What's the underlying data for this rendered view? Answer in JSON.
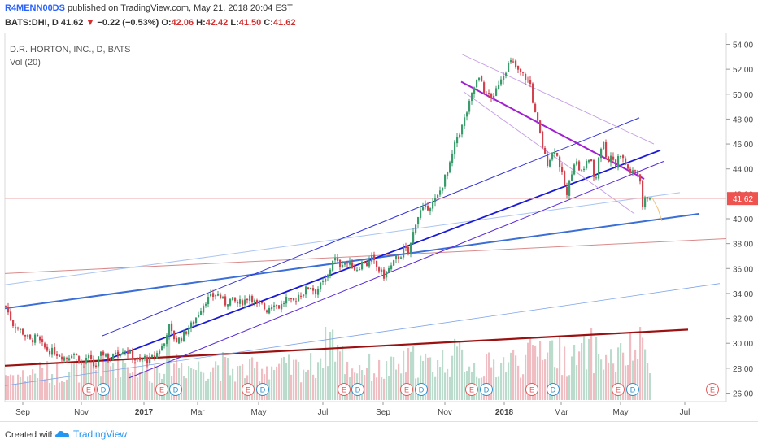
{
  "header": {
    "author": "R4MENN00DS",
    "published_text": "published on TradingView.com, May 21, 2018 20:04 EST",
    "symbol_line": "BATS:DHI, D",
    "last": "41.62",
    "down_arrow": "▼",
    "change": "−0.22 (−0.53%)",
    "o_label": "O:",
    "o_val": "42.06",
    "h_label": "H:",
    "h_val": "42.42",
    "l_label": "L:",
    "l_val": "41.50",
    "c_label": "C:",
    "c_val": "41.62"
  },
  "legend": {
    "symbol": "D.R. HORTON, INC., D, BATS",
    "volume": "Vol (20)"
  },
  "footer": {
    "created_with": "Created with",
    "brand": "TradingView"
  },
  "colors": {
    "up": "#3c9b6c",
    "down": "#d2424f",
    "last_price_badge": "#ef5350"
  },
  "chart_data": {
    "type": "candlestick",
    "y_ticks": [
      "54.00",
      "52.00",
      "50.00",
      "48.00",
      "46.00",
      "44.00",
      "42.00",
      "40.00",
      "38.00",
      "36.00",
      "34.00",
      "32.00",
      "30.00",
      "28.00",
      "26.00"
    ],
    "x_ticks": [
      "Sep",
      "Nov",
      "2017",
      "Mar",
      "May",
      "Jul",
      "Sep",
      "Nov",
      "2018",
      "Mar",
      "May",
      "Jul"
    ],
    "ylim": [
      25.5,
      55
    ],
    "last_price_label": "41.62",
    "price_path": [
      [
        0,
        33.0
      ],
      [
        8,
        31.6
      ],
      [
        15,
        31.2
      ],
      [
        22,
        30.8
      ],
      [
        30,
        30.2
      ],
      [
        38,
        30.5
      ],
      [
        45,
        29.8
      ],
      [
        52,
        29.4
      ],
      [
        60,
        29.3
      ],
      [
        68,
        29.0
      ],
      [
        75,
        28.8
      ],
      [
        82,
        29.3
      ],
      [
        88,
        28.9
      ],
      [
        95,
        28.2
      ],
      [
        100,
        29.0
      ],
      [
        105,
        28.5
      ],
      [
        110,
        28.0
      ],
      [
        115,
        28.9
      ],
      [
        120,
        29.2
      ],
      [
        125,
        29.0
      ],
      [
        130,
        28.6
      ],
      [
        135,
        29.4
      ],
      [
        140,
        29.2
      ],
      [
        145,
        29.6
      ],
      [
        150,
        29.3
      ],
      [
        155,
        29.0
      ],
      [
        160,
        28.7
      ],
      [
        165,
        28.5
      ],
      [
        170,
        28.9
      ],
      [
        175,
        28.6
      ],
      [
        180,
        28.8
      ],
      [
        185,
        29.1
      ],
      [
        190,
        29.6
      ],
      [
        195,
        30.0
      ],
      [
        200,
        31.5
      ],
      [
        205,
        30.6
      ],
      [
        210,
        30.2
      ],
      [
        215,
        30.4
      ],
      [
        220,
        30.8
      ],
      [
        225,
        31.2
      ],
      [
        230,
        31.6
      ],
      [
        235,
        32.2
      ],
      [
        240,
        32.8
      ],
      [
        245,
        33.4
      ],
      [
        250,
        33.6
      ],
      [
        255,
        33.8
      ],
      [
        260,
        34.0
      ],
      [
        265,
        33.6
      ],
      [
        270,
        33.2
      ],
      [
        275,
        33.5
      ],
      [
        280,
        33.4
      ],
      [
        285,
        33.2
      ],
      [
        290,
        33.3
      ],
      [
        295,
        33.5
      ],
      [
        300,
        33.9
      ],
      [
        305,
        33.4
      ],
      [
        310,
        32.9
      ],
      [
        315,
        33.1
      ],
      [
        320,
        32.6
      ],
      [
        325,
        33.0
      ],
      [
        330,
        33.3
      ],
      [
        335,
        32.9
      ],
      [
        340,
        33.1
      ],
      [
        345,
        33.6
      ],
      [
        350,
        33.2
      ],
      [
        355,
        33.4
      ],
      [
        360,
        33.9
      ],
      [
        365,
        34.0
      ],
      [
        370,
        34.4
      ],
      [
        375,
        34.6
      ],
      [
        380,
        34.1
      ],
      [
        385,
        34.5
      ],
      [
        390,
        34.8
      ],
      [
        395,
        35.2
      ],
      [
        400,
        36.2
      ],
      [
        403,
        37.0
      ],
      [
        406,
        36.6
      ],
      [
        410,
        36.2
      ],
      [
        415,
        36.6
      ],
      [
        420,
        36.4
      ],
      [
        425,
        36.3
      ],
      [
        430,
        35.9
      ],
      [
        435,
        36.2
      ],
      [
        440,
        36.6
      ],
      [
        445,
        36.3
      ],
      [
        450,
        36.8
      ],
      [
        455,
        36.2
      ],
      [
        460,
        35.8
      ],
      [
        465,
        35.4
      ],
      [
        470,
        35.9
      ],
      [
        475,
        36.2
      ],
      [
        480,
        36.8
      ],
      [
        485,
        37.0
      ],
      [
        490,
        37.6
      ],
      [
        495,
        37.2
      ],
      [
        500,
        38.5
      ],
      [
        503,
        39.6
      ],
      [
        506,
        40.1
      ],
      [
        510,
        40.6
      ],
      [
        515,
        40.8
      ],
      [
        520,
        41.0
      ],
      [
        525,
        41.2
      ],
      [
        530,
        41.6
      ],
      [
        535,
        42.4
      ],
      [
        540,
        43.3
      ],
      [
        545,
        44.0
      ],
      [
        550,
        45.4
      ],
      [
        555,
        46.6
      ],
      [
        560,
        47.2
      ],
      [
        565,
        48.2
      ],
      [
        570,
        49.2
      ],
      [
        575,
        50.4
      ],
      [
        580,
        51.2
      ],
      [
        585,
        51.0
      ],
      [
        590,
        49.8
      ],
      [
        595,
        50.0
      ],
      [
        600,
        49.6
      ],
      [
        605,
        50.8
      ],
      [
        610,
        51.5
      ],
      [
        615,
        52.0
      ],
      [
        620,
        52.6
      ],
      [
        625,
        52.4
      ],
      [
        630,
        51.8
      ],
      [
        635,
        51.6
      ],
      [
        640,
        51.2
      ],
      [
        645,
        50.8
      ],
      [
        650,
        48.6
      ],
      [
        655,
        47.4
      ],
      [
        660,
        45.8
      ],
      [
        665,
        44.4
      ],
      [
        670,
        45.0
      ],
      [
        675,
        45.6
      ],
      [
        680,
        44.6
      ],
      [
        685,
        43.2
      ],
      [
        690,
        41.8
      ],
      [
        695,
        43.6
      ],
      [
        700,
        44.8
      ],
      [
        705,
        44.0
      ],
      [
        710,
        43.6
      ],
      [
        715,
        45.0
      ],
      [
        720,
        44.4
      ],
      [
        725,
        42.8
      ],
      [
        730,
        45.6
      ],
      [
        735,
        46.0
      ],
      [
        740,
        44.6
      ],
      [
        745,
        45.2
      ],
      [
        750,
        44.2
      ],
      [
        755,
        45.4
      ],
      [
        760,
        44.6
      ],
      [
        765,
        44.0
      ],
      [
        770,
        43.6
      ],
      [
        775,
        43.8
      ],
      [
        780,
        43.2
      ],
      [
        782,
        40.8
      ],
      [
        785,
        41.4
      ],
      [
        790,
        41.9
      ],
      [
        793,
        41.62
      ]
    ],
    "volume_path": [
      [
        0,
        0.2
      ],
      [
        20,
        0.18
      ],
      [
        40,
        0.22
      ],
      [
        60,
        0.2
      ],
      [
        80,
        0.24
      ],
      [
        100,
        0.22
      ],
      [
        120,
        0.26
      ],
      [
        140,
        0.3
      ],
      [
        160,
        0.26
      ],
      [
        180,
        0.22
      ],
      [
        200,
        0.34
      ],
      [
        220,
        0.26
      ],
      [
        240,
        0.24
      ],
      [
        260,
        0.28
      ],
      [
        280,
        0.22
      ],
      [
        300,
        0.22
      ],
      [
        320,
        0.26
      ],
      [
        340,
        0.24
      ],
      [
        360,
        0.24
      ],
      [
        380,
        0.26
      ],
      [
        400,
        0.5
      ],
      [
        420,
        0.24
      ],
      [
        440,
        0.26
      ],
      [
        460,
        0.22
      ],
      [
        480,
        0.24
      ],
      [
        500,
        0.3
      ],
      [
        520,
        0.26
      ],
      [
        540,
        0.3
      ],
      [
        560,
        0.34
      ],
      [
        580,
        0.24
      ],
      [
        600,
        0.26
      ],
      [
        620,
        0.3
      ],
      [
        640,
        0.3
      ],
      [
        660,
        0.44
      ],
      [
        680,
        0.34
      ],
      [
        700,
        0.3
      ],
      [
        720,
        0.38
      ],
      [
        740,
        0.3
      ],
      [
        760,
        0.32
      ],
      [
        780,
        0.4
      ],
      [
        793,
        0.3
      ]
    ],
    "events": [
      {
        "label": "E",
        "color": "#e05a5a"
      },
      {
        "label": "D",
        "color": "#2a8fc9"
      },
      {
        "label": "E",
        "color": "#e05a5a"
      },
      {
        "label": "D",
        "color": "#2a8fc9"
      },
      {
        "label": "E",
        "color": "#e05a5a"
      },
      {
        "label": "D",
        "color": "#2a8fc9"
      },
      {
        "label": "E",
        "color": "#e05a5a"
      },
      {
        "label": "D",
        "color": "#2a8fc9"
      },
      {
        "label": "E",
        "color": "#e05a5a"
      },
      {
        "label": "D",
        "color": "#2a8fc9"
      },
      {
        "label": "E",
        "color": "#e05a5a"
      },
      {
        "label": "D",
        "color": "#2a8fc9"
      },
      {
        "label": "E",
        "color": "#e05a5a"
      },
      {
        "label": "D",
        "color": "#2a8fc9"
      },
      {
        "label": "E",
        "color": "#e05a5a"
      },
      {
        "label": "D",
        "color": "#2a8fc9"
      },
      {
        "label": "E",
        "color": "#e05a5a"
      }
    ]
  }
}
